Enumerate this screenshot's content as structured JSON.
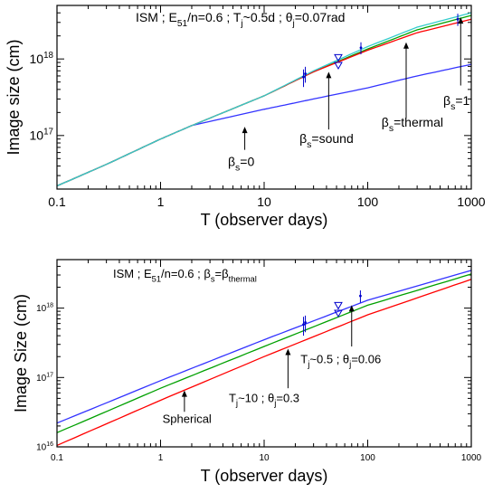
{
  "chart_data": [
    {
      "type": "line",
      "title": "ISM ; E51/n=0.6 ; Tj~0.5d ; θj=0.07rad",
      "title_parts": {
        "a": "ISM ; E",
        "b": "51",
        "c": "/n=0.6 ; T",
        "d": "j",
        "e": "~0.5d ; θ",
        "f": "j",
        "g": "=0.07rad"
      },
      "xlabel": "T (observer days)",
      "ylabel": "Image size (cm)",
      "x_scale": "log",
      "y_scale": "log",
      "xlim": [
        0.1,
        1000
      ],
      "ylim": [
        2e+16,
        5e+18
      ],
      "x_ticks": [
        {
          "v": 0.1,
          "label": "0.1"
        },
        {
          "v": 1,
          "label": "1"
        },
        {
          "v": 10,
          "label": "10"
        },
        {
          "v": 100,
          "label": "100"
        },
        {
          "v": 1000,
          "label": "1000"
        }
      ],
      "y_ticks": [
        {
          "v": 1e+17,
          "base": "10",
          "exp": "17"
        },
        {
          "v": 1e+18,
          "base": "10",
          "exp": "18"
        }
      ],
      "series": [
        {
          "color": "#3333ff",
          "x": [
            0.1,
            0.3,
            1,
            2,
            10,
            30,
            100,
            300,
            1000
          ],
          "y": [
            2.2e+16,
            4.2e+16,
            9e+16,
            1.35e+17,
            2.2e+17,
            3e+17,
            4.2e+17,
            6e+17,
            8.5e+17
          ]
        },
        {
          "color": "#00a000",
          "x": [
            0.1,
            0.3,
            1,
            2,
            10,
            30,
            100,
            300,
            1000
          ],
          "y": [
            2.2e+16,
            4.2e+16,
            9e+16,
            1.35e+17,
            3.3e+17,
            6.8e+17,
            1.35e+18,
            2.4e+18,
            3.7e+18
          ]
        },
        {
          "color": "#ff0000",
          "x": [
            0.1,
            0.3,
            1,
            2,
            10,
            30,
            100,
            300,
            1000
          ],
          "y": [
            2.2e+16,
            4.2e+16,
            9e+16,
            1.35e+17,
            3.3e+17,
            6.8e+17,
            1.3e+18,
            2.2e+18,
            3.3e+18
          ]
        },
        {
          "color": "#33cccc",
          "x": [
            0.1,
            0.3,
            1,
            2,
            10,
            30,
            100,
            300,
            1000
          ],
          "y": [
            2.2e+16,
            4.2e+16,
            9e+16,
            1.35e+17,
            3.3e+17,
            7e+17,
            1.45e+18,
            2.6e+18,
            4e+18
          ]
        }
      ],
      "errorbars": [
        {
          "x": 24,
          "y": 5.8e+17,
          "lo": 4.3e+17,
          "hi": 7.3e+17
        },
        {
          "x": 25,
          "y": 6.4e+17,
          "lo": 4.9e+17,
          "hi": 7.9e+17
        },
        {
          "x": 86,
          "y": 1.4e+18,
          "lo": 1.15e+18,
          "hi": 1.65e+18
        },
        {
          "x": 740,
          "y": 3.3e+18,
          "lo": 2.7e+18,
          "hi": 3.9e+18
        }
      ],
      "limits": [
        {
          "x": 52,
          "y": 1.05e+18
        },
        {
          "x": 52,
          "y": 8.3e+17
        }
      ],
      "annotations": [
        {
          "name": "beta-zero",
          "base": "β",
          "sub": "s",
          "rest": "=0",
          "ax": 6.5,
          "ay_tip": 1.3e+17,
          "ay_tail": 6.5e+16,
          "tx": 6.0,
          "ty": 4e+16
        },
        {
          "name": "beta-sound",
          "base": "β",
          "sub": "s",
          "rest": "=sound",
          "ax": 42,
          "ay_tip": 6.8e+17,
          "ay_tail": 1.2e+17,
          "tx": 40,
          "ty": 8e+16
        },
        {
          "name": "beta-thermal",
          "base": "β",
          "sub": "s",
          "rest": "=thermal",
          "ax": 235,
          "ay_tip": 1.65e+18,
          "ay_tail": 1.7e+17,
          "tx": 270,
          "ty": 1.3e+17
        },
        {
          "name": "beta-one",
          "base": "β",
          "sub": "s",
          "rest": "=1",
          "ax": 790,
          "ay_tip": 3.5e+18,
          "ay_tail": 4.5e+17,
          "tx": 720,
          "ty": 2.5e+17
        }
      ]
    },
    {
      "type": "line",
      "title": "ISM ; E51/n=0.6 ; βs=βthermal",
      "title_parts": {
        "a": "ISM ; E",
        "b": "51",
        "c": "/n=0.6 ; β",
        "d": "s",
        "e": "=β",
        "f": "thermal"
      },
      "xlabel": "T (observer days)",
      "ylabel": "Image Size (cm)",
      "x_scale": "log",
      "y_scale": "log",
      "xlim": [
        0.1,
        1000
      ],
      "ylim": [
        1e+16,
        5e+18
      ],
      "x_ticks": [
        {
          "v": 0.1,
          "label": "0.1"
        },
        {
          "v": 1,
          "label": "1"
        },
        {
          "v": 10,
          "label": "10"
        },
        {
          "v": 100,
          "label": "100"
        },
        {
          "v": 1000,
          "label": "1000"
        }
      ],
      "y_ticks": [
        {
          "v": 1e+16,
          "base": "10",
          "exp": "16"
        },
        {
          "v": 1e+17,
          "base": "10",
          "exp": "17"
        },
        {
          "v": 1e+18,
          "base": "10",
          "exp": "18"
        }
      ],
      "series": [
        {
          "color": "#3333ff",
          "x": [
            0.1,
            1,
            10,
            100,
            1000
          ],
          "y": [
            2.2e+16,
            9e+16,
            3.5e+17,
            1.3e+18,
            3.5e+18
          ]
        },
        {
          "color": "#00a000",
          "x": [
            0.1,
            1,
            10,
            100,
            1000
          ],
          "y": [
            1.6e+16,
            7e+16,
            2.8e+17,
            1.1e+18,
            3.1e+18
          ]
        },
        {
          "color": "#ff0000",
          "x": [
            0.1,
            1,
            10,
            100,
            1000
          ],
          "y": [
            1.05e+16,
            4.7e+16,
            2e+17,
            8e+17,
            2.6e+18
          ]
        }
      ],
      "errorbars": [
        {
          "x": 24,
          "y": 5.8e+17,
          "lo": 4e+17,
          "hi": 7.5e+17
        },
        {
          "x": 25,
          "y": 6.2e+17,
          "lo": 4.5e+17,
          "hi": 7.8e+17
        },
        {
          "x": 85,
          "y": 1.5e+18,
          "lo": 1.2e+18,
          "hi": 1.8e+18
        }
      ],
      "limits": [
        {
          "x": 52,
          "y": 1.1e+18
        },
        {
          "x": 52,
          "y": 8.5e+17
        }
      ],
      "annotations": [
        {
          "name": "spherical",
          "text": "Spherical",
          "ax": 1.7,
          "ay_tip": 6.5e+16,
          "ay_tail": 3.2e+16,
          "tx": 1.8,
          "ty": 2.2e+16
        },
        {
          "name": "tj-10",
          "base": "T",
          "sub": "j",
          "rest": "~10 ; θ",
          "sub2": "j",
          "rest2": "=0.3",
          "ax": 17,
          "ay_tip": 2.6e+17,
          "ay_tail": 7e+16,
          "tx": 10,
          "ty": 4.4e+16
        },
        {
          "name": "tj-05",
          "base": "T",
          "sub": "j",
          "rest": "~0.5 ; θ",
          "sub2": "j",
          "rest2": "=0.06",
          "ax": 70,
          "ay_tip": 1.1e+18,
          "ay_tail": 2.8e+17,
          "tx": 55,
          "ty": 1.6e+17
        }
      ]
    }
  ]
}
